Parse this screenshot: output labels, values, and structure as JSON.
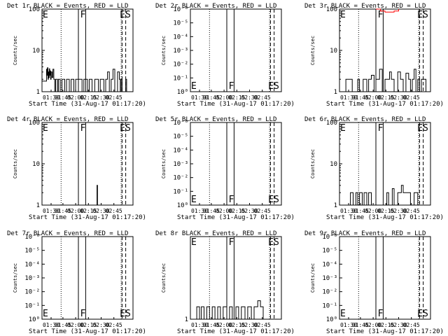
{
  "chart_data": [
    {
      "type": "line",
      "title": "Det 1r BLACK = Events, RED = LLD",
      "xlabel": "Start Time (31-Aug-17 01:17:20)",
      "ylabel": "Counts/sec",
      "xticks": [
        "01:30",
        "01:45",
        "02:00",
        "02:15",
        "02:30",
        "02:45"
      ],
      "yticks": [
        "1",
        "10",
        "100"
      ],
      "ylim": [
        1,
        100
      ],
      "markers": {
        "E": "E",
        "F": "F",
        "ES": "ES"
      },
      "series": [
        {
          "color": "#000000",
          "points": [
            [
              0.0,
              1.8
            ],
            [
              0.04,
              1.8
            ],
            [
              0.05,
              3.5
            ],
            [
              0.055,
              2.5
            ],
            [
              0.06,
              3.8
            ],
            [
              0.065,
              2
            ],
            [
              0.07,
              3
            ],
            [
              0.075,
              2.2
            ],
            [
              0.08,
              3.6
            ],
            [
              0.085,
              2.5
            ],
            [
              0.09,
              3.2
            ],
            [
              0.095,
              2
            ],
            [
              0.1,
              3
            ],
            [
              0.11,
              2.2
            ],
            [
              0.12,
              3.5
            ],
            [
              0.13,
              2
            ],
            [
              0.14,
              1
            ],
            [
              0.15,
              2
            ],
            [
              0.17,
              1
            ],
            [
              0.18,
              2
            ],
            [
              0.2,
              1
            ],
            [
              0.22,
              2
            ],
            [
              0.25,
              1
            ],
            [
              0.27,
              2
            ],
            [
              0.3,
              1
            ],
            [
              0.32,
              2
            ],
            [
              0.35,
              1
            ],
            [
              0.37,
              2
            ],
            [
              0.42,
              2
            ],
            [
              0.44,
              1
            ],
            [
              0.46,
              2
            ],
            [
              0.5,
              1
            ],
            [
              0.52,
              2
            ],
            [
              0.55,
              1
            ],
            [
              0.58,
              2
            ],
            [
              0.62,
              1
            ],
            [
              0.64,
              2
            ],
            [
              0.68,
              1
            ],
            [
              0.7,
              2
            ],
            [
              0.72,
              3
            ],
            [
              0.74,
              1
            ],
            [
              0.76,
              2
            ],
            [
              0.78,
              3.5
            ],
            [
              0.8,
              1
            ],
            [
              0.83,
              3
            ],
            [
              0.85,
              2
            ],
            [
              0.86,
              1
            ],
            [
              0.87,
              2
            ],
            [
              0.88,
              1
            ],
            [
              0.9,
              1
            ],
            [
              0.92,
              2
            ],
            [
              0.93,
              1
            ]
          ]
        }
      ]
    },
    {
      "type": "line",
      "title": "Det 2r BLACK = Events, RED = LLD",
      "xlabel": "Start Time (31-Aug-17 01:17:20)",
      "ylabel": "Counts/sec",
      "xticks": [
        "01:30",
        "01:45",
        "02:00",
        "02:15",
        "02:30",
        "02:45"
      ],
      "yticks": [
        "10⁰",
        "10⁻¹",
        "10⁻²",
        "10⁻³",
        "10⁻⁴",
        "10⁻⁵",
        "10⁻⁶"
      ],
      "ylim": [
        0,
        6
      ],
      "markers": {
        "E": "E",
        "F": "F",
        "ES": "ES"
      },
      "series": []
    },
    {
      "type": "line",
      "title": "Det 3r BLACK = Events, RED = LLD",
      "xlabel": "Start Time (31-Aug-17 01:17:20)",
      "ylabel": "Counts/sec",
      "xticks": [
        "01:30",
        "01:45",
        "02:00",
        "02:15",
        "02:30",
        "02:45"
      ],
      "yticks": [
        "1",
        "10",
        "100"
      ],
      "ylim": [
        1,
        100
      ],
      "markers": {
        "E": "E",
        "F": "F",
        "ES": "ES"
      },
      "series": [
        {
          "color": "#000000",
          "points": [
            [
              0.0,
              1
            ],
            [
              0.06,
              1
            ],
            [
              0.07,
              2
            ],
            [
              0.12,
              2
            ],
            [
              0.14,
              1
            ],
            [
              0.2,
              2
            ],
            [
              0.22,
              1
            ],
            [
              0.26,
              2
            ],
            [
              0.3,
              1
            ],
            [
              0.32,
              2
            ],
            [
              0.35,
              2.5
            ],
            [
              0.38,
              1
            ],
            [
              0.4,
              2
            ],
            [
              0.44,
              3.5
            ],
            [
              0.47,
              1
            ],
            [
              0.5,
              2
            ],
            [
              0.55,
              3
            ],
            [
              0.57,
              2
            ],
            [
              0.6,
              1
            ],
            [
              0.64,
              3
            ],
            [
              0.67,
              2
            ],
            [
              0.7,
              1
            ],
            [
              0.73,
              2.8
            ],
            [
              0.76,
              2
            ],
            [
              0.78,
              1
            ],
            [
              0.8,
              2
            ],
            [
              0.82,
              3.5
            ],
            [
              0.84,
              1
            ],
            [
              0.86,
              2
            ],
            [
              0.88,
              1
            ],
            [
              0.9,
              2
            ],
            [
              0.95,
              1
            ],
            [
              1.0,
              1
            ]
          ]
        },
        {
          "color": "#ff0000",
          "points": [
            [
              0.4,
              100
            ],
            [
              0.45,
              90
            ],
            [
              0.5,
              85
            ],
            [
              0.55,
              85
            ],
            [
              0.6,
              90
            ],
            [
              0.65,
              100
            ]
          ]
        }
      ]
    },
    {
      "type": "line",
      "title": "Det 4r BLACK = Events, RED = LLD",
      "xlabel": "Start Time (31-Aug-17 01:17:20)",
      "ylabel": "Counts/sec",
      "xticks": [
        "01:30",
        "01:45",
        "02:00",
        "02:15",
        "02:30",
        "02:45"
      ],
      "yticks": [
        "1",
        "10",
        "100"
      ],
      "ylim": [
        1,
        100
      ],
      "markers": {
        "E": "E",
        "F": "F",
        "ES": "ES"
      },
      "series": [
        {
          "color": "#000000",
          "points": [
            [
              0.6,
              1
            ],
            [
              0.605,
              3
            ],
            [
              0.61,
              1
            ]
          ]
        }
      ]
    },
    {
      "type": "line",
      "title": "Det 5r BLACK = Events, RED = LLD",
      "xlabel": "Start Time (31-Aug-17 01:17:20)",
      "ylabel": "Counts/sec",
      "xticks": [
        "01:30",
        "01:45",
        "02:00",
        "02:15",
        "02:30",
        "02:45"
      ],
      "yticks": [
        "10⁰",
        "10⁻¹",
        "10⁻²",
        "10⁻³",
        "10⁻⁴",
        "10⁻⁵",
        "10⁻⁶"
      ],
      "ylim": [
        0,
        6
      ],
      "markers": {
        "E": "E",
        "F": "F",
        "ES": "ES"
      },
      "series": []
    },
    {
      "type": "line",
      "title": "Det 6r BLACK = Events, RED = LLD",
      "xlabel": "Start Time (31-Aug-17 01:17:20)",
      "ylabel": "Counts/sec",
      "xticks": [
        "01:30",
        "01:45",
        "02:00",
        "02:15",
        "02:30",
        "02:45"
      ],
      "yticks": [
        "1",
        "10",
        "100"
      ],
      "ylim": [
        1,
        100
      ],
      "markers": {
        "E": "E",
        "F": "F",
        "ES": "ES"
      },
      "series": [
        {
          "color": "#000000",
          "points": [
            [
              0.1,
              1
            ],
            [
              0.12,
              2
            ],
            [
              0.15,
              1
            ],
            [
              0.18,
              2
            ],
            [
              0.2,
              1
            ],
            [
              0.22,
              2
            ],
            [
              0.25,
              1
            ],
            [
              0.27,
              2
            ],
            [
              0.3,
              1
            ],
            [
              0.32,
              2
            ],
            [
              0.35,
              1
            ],
            [
              0.5,
              1
            ],
            [
              0.52,
              2
            ],
            [
              0.54,
              1
            ],
            [
              0.58,
              2.5
            ],
            [
              0.6,
              1
            ],
            [
              0.64,
              2
            ],
            [
              0.68,
              3
            ],
            [
              0.7,
              2
            ],
            [
              0.75,
              2
            ],
            [
              0.78,
              1
            ],
            [
              0.82,
              2
            ],
            [
              0.86,
              1
            ],
            [
              0.9,
              1
            ]
          ]
        }
      ]
    },
    {
      "type": "line",
      "title": "Det 7r BLACK = Events, RED = LLD",
      "xlabel": "Start Time (31-Aug-17 01:17:20)",
      "ylabel": "Counts/sec",
      "xticks": [
        "01:30",
        "01:45",
        "02:00",
        "02:15",
        "02:30",
        "02:45"
      ],
      "yticks": [
        "10⁰",
        "10⁻¹",
        "10⁻²",
        "10⁻³",
        "10⁻⁴",
        "10⁻⁵",
        "10⁻⁶"
      ],
      "ylim": [
        0,
        6
      ],
      "markers": {
        "E": "E",
        "F": "F",
        "ES": "ES"
      },
      "series": []
    },
    {
      "type": "line",
      "title": "Det 8r BLACK = Events, RED = LLD",
      "xlabel": "Start Time (31-Aug-17 01:17:20)",
      "ylabel": "Counts/sec",
      "xticks": [
        "01:30",
        "01:45",
        "02:00",
        "02:15",
        "02:30",
        "02:45"
      ],
      "yticks": [
        "1"
      ],
      "ylim": [
        1,
        100
      ],
      "markers": {
        "E": "E",
        "F": "F",
        "ES": "ES"
      },
      "series": [
        {
          "color": "#000000",
          "points": [
            [
              0.0,
              1
            ],
            [
              0.06,
              1
            ],
            [
              0.07,
              2
            ],
            [
              0.1,
              1
            ],
            [
              0.12,
              2
            ],
            [
              0.15,
              1
            ],
            [
              0.18,
              2
            ],
            [
              0.21,
              1
            ],
            [
              0.24,
              2
            ],
            [
              0.27,
              1
            ],
            [
              0.3,
              2
            ],
            [
              0.33,
              1
            ],
            [
              0.36,
              2
            ],
            [
              0.4,
              1
            ],
            [
              0.43,
              2
            ],
            [
              0.46,
              1
            ],
            [
              0.5,
              2
            ],
            [
              0.53,
              1
            ],
            [
              0.56,
              2
            ],
            [
              0.6,
              1
            ],
            [
              0.63,
              2
            ],
            [
              0.67,
              1
            ],
            [
              0.7,
              2
            ],
            [
              0.74,
              2.8
            ],
            [
              0.77,
              2
            ],
            [
              0.8,
              1
            ],
            [
              1.0,
              1
            ]
          ]
        }
      ]
    },
    {
      "type": "line",
      "title": "Det 9r BLACK = Events, RED = LLD",
      "xlabel": "Start Time (31-Aug-17 01:17:20)",
      "ylabel": "Counts/sec",
      "xticks": [
        "01:30",
        "01:45",
        "02:00",
        "02:15",
        "02:30",
        "02:45"
      ],
      "yticks": [
        "10⁰",
        "10⁻¹",
        "10⁻²",
        "10⁻³",
        "10⁻⁴",
        "10⁻⁵",
        "10⁻⁶"
      ],
      "ylim": [
        0,
        6
      ],
      "markers": {
        "E": "E",
        "F": "F",
        "ES": "ES"
      },
      "series": []
    }
  ]
}
